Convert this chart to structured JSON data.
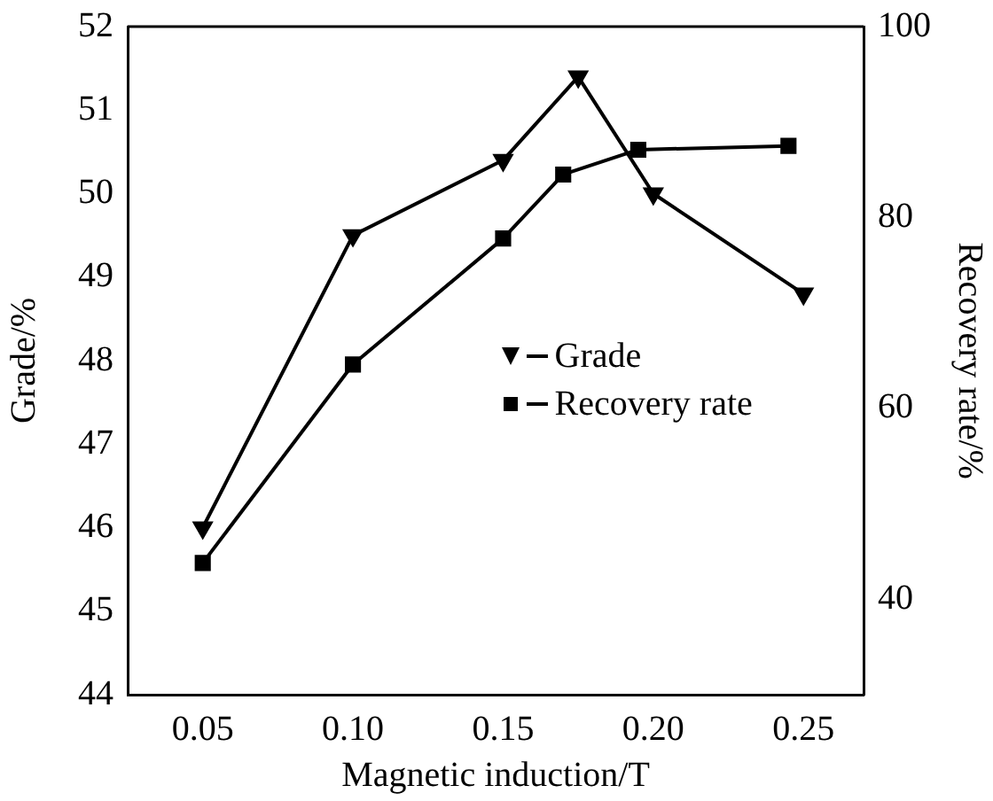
{
  "chart_data": {
    "type": "line",
    "xlabel": "Magnetic induction/T",
    "ylabel": "Grade/%",
    "y2label": "Recovery rate/%",
    "xlim": [
      0.025,
      0.27
    ],
    "xticks": [
      {
        "value": 0.05,
        "label": "0.05"
      },
      {
        "value": 0.1,
        "label": "0.10"
      },
      {
        "value": 0.15,
        "label": "0.15"
      },
      {
        "value": 0.2,
        "label": "0.20"
      },
      {
        "value": 0.25,
        "label": "0.25"
      }
    ],
    "ylim": [
      44,
      52
    ],
    "yticks": [
      44,
      45,
      46,
      47,
      48,
      49,
      50,
      51,
      52
    ],
    "y2lim": [
      30,
      100
    ],
    "y2ticks": [
      40,
      60,
      80,
      100
    ],
    "grid": false,
    "legend": "center right",
    "line_style": "solid",
    "series": [
      {
        "name": "Grade",
        "color": "#000000",
        "marker": "triangle",
        "x": [
          0.05,
          0.1,
          0.15,
          0.175,
          0.2,
          0.25
        ],
        "values": [
          46.0,
          49.5,
          50.4,
          51.4,
          50.0,
          48.8
        ]
      },
      {
        "name": "Recovery rate",
        "color": "#000000",
        "marker": "square",
        "axis": "y2",
        "x": [
          0.05,
          0.1,
          0.15,
          0.17,
          0.195,
          0.245
        ],
        "values": [
          43.8,
          64.6,
          77.8,
          84.5,
          87.1,
          87.5
        ]
      }
    ]
  }
}
